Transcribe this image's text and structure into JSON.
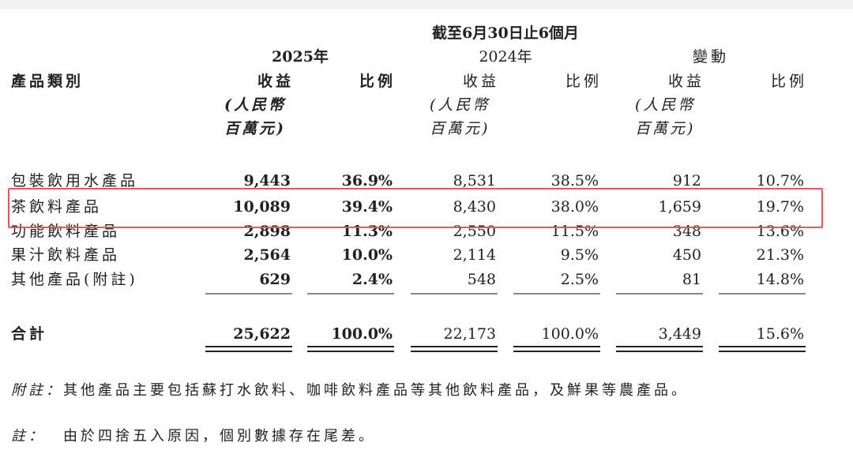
{
  "header": {
    "period": "截至6月30日止6個月",
    "years": [
      "2025年",
      "2024年",
      "變動"
    ],
    "category_label": "產品類別",
    "revenue_label": "收益",
    "ratio_label": "比例",
    "unit_line1": "(人民幣",
    "unit_line2": "百萬元)"
  },
  "rows": [
    {
      "category": "包裝飲用水產品",
      "values": [
        "9,443",
        "36.9%",
        "8,531",
        "38.5%",
        "912",
        "10.7%"
      ]
    },
    {
      "category": "茶飲料產品",
      "values": [
        "10,089",
        "39.4%",
        "8,430",
        "38.0%",
        "1,659",
        "19.7%"
      ]
    },
    {
      "category": "功能飲料產品",
      "values": [
        "2,898",
        "11.3%",
        "2,550",
        "11.5%",
        "348",
        "13.6%"
      ]
    },
    {
      "category": "果汁飲料產品",
      "values": [
        "2,564",
        "10.0%",
        "2,114",
        "9.5%",
        "450",
        "21.3%"
      ]
    },
    {
      "category": "其他產品(附註)",
      "values": [
        "629",
        "2.4%",
        "548",
        "2.5%",
        "81",
        "14.8%"
      ]
    }
  ],
  "total": {
    "category": "合計",
    "values": [
      "25,622",
      "100.0%",
      "22,173",
      "100.0%",
      "3,449",
      "15.6%"
    ]
  },
  "notes": {
    "appendix_label": "附註：",
    "appendix_text": "其他產品主要包括蘇打水飲料、咖啡飲料產品等其他飲料產品，及鮮果等農產品。",
    "note_label": "註：",
    "note_text": "由於四捨五入原因，個別數據存在尾差。"
  },
  "highlight_color": "#e85757"
}
